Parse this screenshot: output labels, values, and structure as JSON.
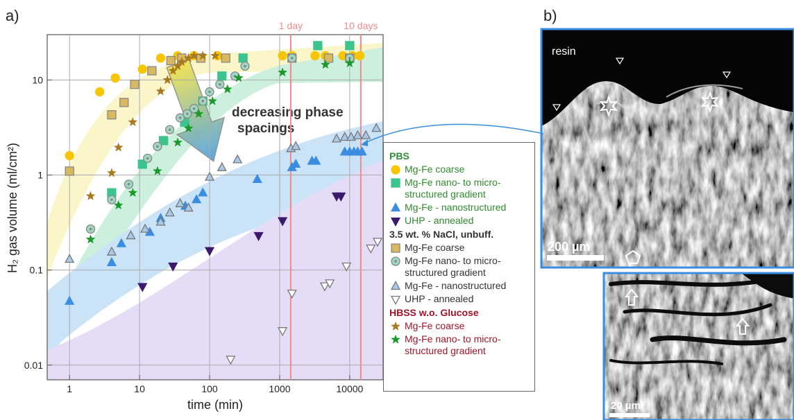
{
  "chart_data": {
    "type": "scatter",
    "panel_label": "a)",
    "xlabel": "time (min)",
    "ylabel": "H₂ gas volume (ml/cm²)",
    "xlog": true,
    "ylog": true,
    "grid": true,
    "xlim": [
      0.48,
      30000
    ],
    "ylim": [
      0.007,
      30
    ],
    "xticks": [
      1,
      10,
      100,
      1000,
      10000
    ],
    "yticks": [
      0.01,
      0.1,
      1,
      10
    ],
    "annotation": [
      "decreasing phase",
      "spacings"
    ],
    "vlines": [
      {
        "x": 1440,
        "label": "1 day",
        "color": "#f08a8a"
      },
      {
        "x": 14400,
        "label": "10 days",
        "color": "#f08a8a"
      }
    ],
    "groups": [
      {
        "name": "PBS",
        "color": "#2e8b2e",
        "series": [
          {
            "name": "Mg-Fe coarse",
            "marker": "circle",
            "color": "#f7c600",
            "edge": "#f7c600",
            "x": [
              1,
              2.7,
              4.5,
              11,
              20,
              35,
              60,
              130,
              1100,
              1500,
              3200,
              4500,
              8000,
              11000,
              14000
            ],
            "values": [
              1.6,
              7.5,
              10.5,
              13,
              17,
              18,
              18,
              18,
              18,
              18,
              18,
              18,
              18,
              18,
              18
            ]
          },
          {
            "name": "Mg-Fe nano- to micro-structured gradient",
            "marker": "square",
            "color": "#3cc48e",
            "edge": "#3cc48e",
            "x": [
              4,
              11,
              22,
              44,
              80,
              150,
              300,
              3500,
              10000
            ],
            "values": [
              0.65,
              1.3,
              2.3,
              3.6,
              6,
              11,
              17,
              23,
              23
            ]
          },
          {
            "name": "Mg-Fe - nanostructured",
            "marker": "tri-up",
            "color": "#3a8de0",
            "edge": "#3a8de0",
            "x": [
              1,
              4,
              5.5,
              14,
              20,
              45,
              65,
              80,
              480,
              1500,
              1700,
              2900,
              3300,
              8500,
              10000,
              11500,
              13000,
              15000
            ],
            "values": [
              0.047,
              0.12,
              0.19,
              0.25,
              0.35,
              0.47,
              0.55,
              0.65,
              0.9,
              1.2,
              1.3,
              1.4,
              1.4,
              1.75,
              1.75,
              1.75,
              1.75,
              1.75
            ]
          },
          {
            "name": "UHP - annealed",
            "marker": "tri-down",
            "color": "#3b1a6e",
            "edge": "#3b1a6e",
            "x": [
              11,
              30,
              100,
              500,
              1100,
              6500,
              7500
            ],
            "values": [
              0.067,
              0.11,
              0.16,
              0.23,
              0.33,
              0.6,
              0.6
            ]
          }
        ]
      },
      {
        "name": "3.5 wt. % NaCl, unbuff.",
        "color": "#333333",
        "series": [
          {
            "name": "Mg-Fe coarse",
            "marker": "square",
            "color": "#d9b860",
            "edge": "#888888",
            "x": [
              1,
              4,
              6,
              8.5,
              15,
              28,
              40,
              75,
              170,
              1500,
              5000,
              10000
            ],
            "values": [
              1.1,
              4.3,
              5.8,
              9,
              12.5,
              16,
              17,
              17,
              17,
              17,
              17,
              17
            ]
          },
          {
            "name": "Mg-Fe nano- to micro-structured gradient",
            "marker": "circle-dot",
            "color": "#9fd8c2",
            "edge": "#888888",
            "x": [
              2,
              4,
              7,
              13,
              18,
              27,
              38,
              48,
              60,
              80,
              100,
              140,
              230,
              320,
              1500,
              10000
            ],
            "values": [
              0.27,
              0.55,
              0.8,
              1.5,
              2,
              3,
              4,
              4.4,
              5,
              6,
              7.5,
              9,
              11,
              14,
              17,
              17
            ]
          },
          {
            "name": "Mg-Fe - nanostructured",
            "marker": "tri-up",
            "color": "#a9c9ea",
            "edge": "#777777",
            "x": [
              1,
              4,
              7.5,
              12,
              20,
              27,
              38,
              50,
              100,
              150,
              250,
              1450,
              1700,
              6500,
              8500,
              10500,
              13000,
              17000,
              24000
            ],
            "values": [
              0.13,
              0.155,
              0.23,
              0.27,
              0.32,
              0.4,
              0.5,
              0.45,
              0.95,
              1.2,
              1.45,
              1.9,
              2,
              2.4,
              2.5,
              2.5,
              2.6,
              2.6,
              3.1
            ]
          },
          {
            "name": "UHP - annealed",
            "marker": "tri-down",
            "color": "#ffffff",
            "edge": "#777777",
            "x": [
              200,
              1100,
              1500,
              4400,
              5200,
              9000,
              20000,
              25000
            ],
            "values": [
              0.0115,
              0.023,
              0.057,
              0.068,
              0.073,
              0.11,
              0.17,
              0.2
            ]
          }
        ]
      },
      {
        "name": "HBSS w.o. Glucose",
        "color": "#a0142a",
        "series": [
          {
            "name": "Mg-Fe coarse",
            "marker": "star",
            "color": "#a87a20",
            "edge": "#a87a20",
            "x": [
              2,
              4,
              5,
              8,
              20,
              25,
              30,
              35,
              40,
              50,
              60,
              80,
              120
            ],
            "values": [
              0.6,
              1.05,
              1.95,
              3.6,
              7.6,
              10,
              12.5,
              14,
              15.5,
              17,
              18,
              18,
              18
            ]
          },
          {
            "name": "Mg-Fe nano- to micro-structured gradient",
            "marker": "star",
            "color": "#1a9a2a",
            "edge": "#1a9a2a",
            "x": [
              2,
              5,
              8,
              18,
              35,
              50,
              70,
              110,
              180,
              260,
              1100,
              4500,
              10000
            ],
            "values": [
              0.21,
              0.48,
              0.65,
              1.1,
              2.2,
              3.1,
              4.4,
              6,
              8,
              10.5,
              12,
              14.5,
              15
            ]
          }
        ]
      }
    ]
  },
  "panel_b": {
    "label": "b)",
    "image1": {
      "label": "resin",
      "scale": "200 µm"
    },
    "image2": {
      "scale": "20 µm"
    }
  }
}
